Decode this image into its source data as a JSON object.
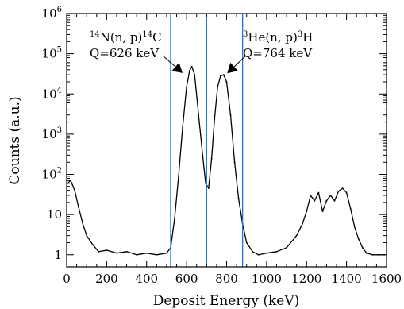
{
  "chart_data": {
    "type": "line",
    "title": "",
    "xlabel": "Deposit Energy (keV)",
    "ylabel": "Counts (a.u.)",
    "xlim": [
      0,
      1600
    ],
    "ylim": [
      0.5,
      1000000
    ],
    "yscale": "log",
    "xticks": [
      0,
      200,
      400,
      600,
      800,
      1000,
      1200,
      1400,
      1600
    ],
    "xtick_labels": [
      "0",
      "200",
      "400",
      "600",
      "800",
      "1000",
      "1200",
      "1400",
      "1600"
    ],
    "yticks": [
      1,
      10,
      100,
      1000,
      10000,
      100000,
      1000000
    ],
    "ytick_labels": [
      {
        "base": "1",
        "exp": ""
      },
      {
        "base": "10",
        "exp": ""
      },
      {
        "base": "10",
        "exp": "2"
      },
      {
        "base": "10",
        "exp": "3"
      },
      {
        "base": "10",
        "exp": "4"
      },
      {
        "base": "10",
        "exp": "5"
      },
      {
        "base": "10",
        "exp": "6"
      }
    ],
    "grid": false,
    "vertical_lines": [
      {
        "x": 520,
        "color": "#3a6fb4"
      },
      {
        "x": 700,
        "color": "#3a6fb4"
      },
      {
        "x": 880,
        "color": "#3a6fb4"
      }
    ],
    "series": [
      {
        "color": "#000000",
        "x": [
          5,
          20,
          40,
          60,
          80,
          100,
          130,
          160,
          200,
          250,
          300,
          350,
          400,
          450,
          500,
          520,
          540,
          560,
          580,
          600,
          615,
          626,
          640,
          660,
          680,
          695,
          710,
          725,
          740,
          755,
          770,
          785,
          800,
          820,
          840,
          860,
          880,
          900,
          930,
          960,
          1000,
          1050,
          1100,
          1150,
          1180,
          1200,
          1220,
          1240,
          1260,
          1280,
          1300,
          1320,
          1340,
          1360,
          1380,
          1400,
          1420,
          1440,
          1460,
          1480,
          1500,
          1530,
          1560,
          1590
        ],
        "y": [
          60,
          70,
          40,
          15,
          6,
          3,
          1.8,
          1.2,
          1.3,
          1.1,
          1.2,
          1.0,
          1.1,
          1.0,
          1.1,
          1.5,
          8,
          90,
          1500,
          15000,
          38000,
          48000,
          30000,
          3000,
          300,
          60,
          45,
          250,
          2500,
          15000,
          28000,
          30000,
          20000,
          3000,
          200,
          25,
          6,
          2,
          1.2,
          1.0,
          1.1,
          1.2,
          1.5,
          3,
          6,
          12,
          30,
          22,
          35,
          12,
          22,
          30,
          22,
          38,
          45,
          35,
          14,
          5,
          2.5,
          1.5,
          1.1,
          1.0,
          1.0,
          1.0
        ]
      }
    ],
    "annotations": [
      {
        "line1_pre": "14",
        "line1_main": "N(n, p)",
        "line1_post": "14",
        "line1_end": "C",
        "line2": "Q=626 keV",
        "arrow_to_x": 545,
        "arrow_to_y": 22000
      },
      {
        "line1_pre": "3",
        "line1_main": "He(n, p)",
        "line1_post": "3",
        "line1_end": "H",
        "line2": "Q=764 keV",
        "arrow_to_x": 815,
        "arrow_to_y": 22000
      }
    ]
  }
}
